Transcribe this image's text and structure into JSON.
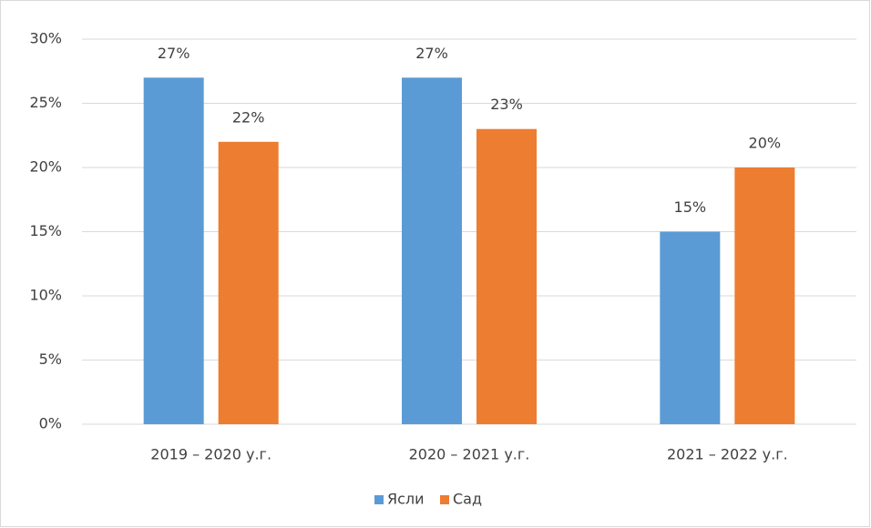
{
  "chart_data": {
    "type": "bar",
    "categories": [
      "2019 – 2020 у.г.",
      "2020 – 2021 у.г.",
      "2021 – 2022 у.г."
    ],
    "series": [
      {
        "name": "Ясли",
        "color": "#5b9bd5",
        "values": [
          27,
          27,
          15
        ],
        "value_labels": [
          "27%",
          "27%",
          "15%"
        ]
      },
      {
        "name": "Сад",
        "color": "#ed7d31",
        "values": [
          22,
          23,
          20
        ],
        "value_labels": [
          "22%",
          "23%",
          "20%"
        ]
      }
    ],
    "ylim": [
      0,
      30
    ],
    "yticks": [
      {
        "value": 0,
        "label": "0%"
      },
      {
        "value": 5,
        "label": "5%"
      },
      {
        "value": 10,
        "label": "10%"
      },
      {
        "value": 15,
        "label": "15%"
      },
      {
        "value": 20,
        "label": "20%"
      },
      {
        "value": 25,
        "label": "25%"
      },
      {
        "value": 30,
        "label": "30%"
      }
    ],
    "grid": true,
    "legend": "bottom"
  }
}
